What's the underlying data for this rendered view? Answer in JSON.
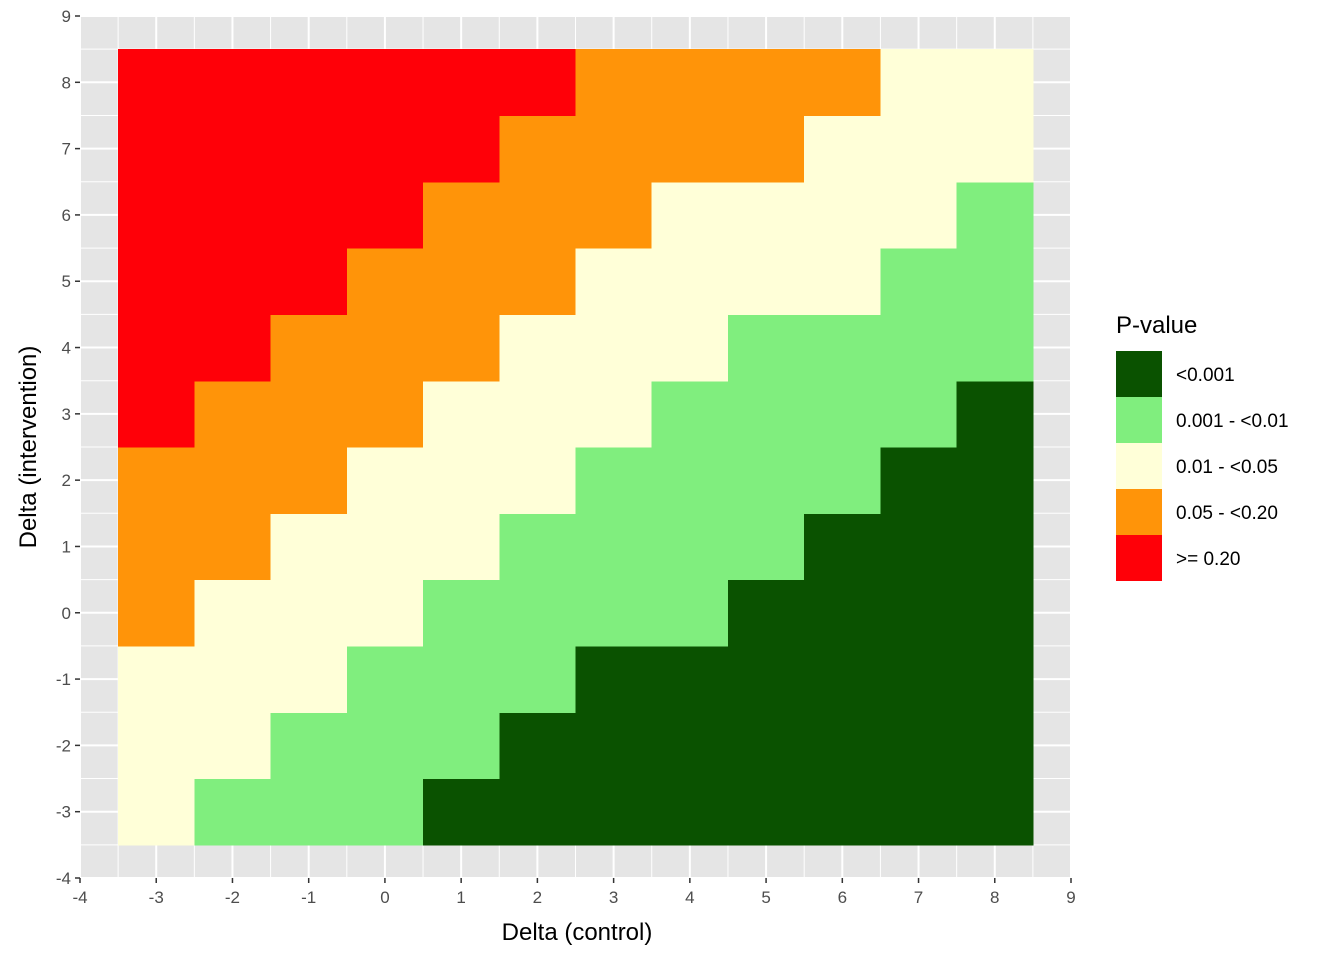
{
  "chart_data": {
    "type": "heatmap",
    "title": "",
    "xlabel": "Delta (control)",
    "ylabel": "Delta (intervention)",
    "xlim": [
      -4,
      9
    ],
    "ylim": [
      -4,
      9
    ],
    "x_ticks": [
      -4,
      -3,
      -2,
      -1,
      0,
      1,
      2,
      3,
      4,
      5,
      6,
      7,
      8,
      9
    ],
    "y_ticks": [
      -4,
      -3,
      -2,
      -1,
      0,
      1,
      2,
      3,
      4,
      5,
      6,
      7,
      8,
      9
    ],
    "x": [
      -3,
      -2,
      -1,
      0,
      1,
      2,
      3,
      4,
      5,
      6,
      7,
      8
    ],
    "y": [
      -3,
      -2,
      -1,
      0,
      1,
      2,
      3,
      4,
      5,
      6,
      7,
      8
    ],
    "grid": true,
    "legend": {
      "title": "P-value",
      "position": "right",
      "categories": [
        "<0.001",
        "0.001 - <0.01",
        "0.01 - <0.05",
        "0.05 - <0.20",
        ">= 0.20"
      ],
      "colors": [
        "#0a5200",
        "#80ee7e",
        "#ffffd8",
        "#ff9409",
        "#ff0008"
      ]
    },
    "cells_note_rows": "rows ordered by y from -3 to 8; each row lists category index for x from -3 to 8 (0 = <0.001 ... 4 = >= 0.20)",
    "rows": [
      [
        2,
        1,
        1,
        1,
        0,
        0,
        0,
        0,
        0,
        0,
        0,
        0
      ],
      [
        2,
        2,
        1,
        1,
        1,
        0,
        0,
        0,
        0,
        0,
        0,
        0
      ],
      [
        2,
        2,
        2,
        1,
        1,
        1,
        0,
        0,
        0,
        0,
        0,
        0
      ],
      [
        3,
        2,
        2,
        2,
        1,
        1,
        1,
        1,
        0,
        0,
        0,
        0
      ],
      [
        3,
        3,
        2,
        2,
        2,
        1,
        1,
        1,
        1,
        0,
        0,
        0
      ],
      [
        3,
        3,
        3,
        2,
        2,
        2,
        1,
        1,
        1,
        1,
        0,
        0
      ],
      [
        4,
        3,
        3,
        3,
        2,
        2,
        2,
        1,
        1,
        1,
        1,
        0
      ],
      [
        4,
        4,
        3,
        3,
        3,
        2,
        2,
        2,
        1,
        1,
        1,
        1
      ],
      [
        4,
        4,
        4,
        3,
        3,
        3,
        2,
        2,
        2,
        2,
        1,
        1
      ],
      [
        4,
        4,
        4,
        4,
        3,
        3,
        3,
        2,
        2,
        2,
        2,
        1
      ],
      [
        4,
        4,
        4,
        4,
        4,
        3,
        3,
        3,
        3,
        2,
        2,
        2
      ],
      [
        4,
        4,
        4,
        4,
        4,
        4,
        3,
        3,
        3,
        3,
        2,
        2
      ]
    ]
  },
  "colors": {
    "panel_background": "#e5e5e5",
    "grid_line": "#ffffff",
    "tick_text": "#4d4d4d"
  }
}
